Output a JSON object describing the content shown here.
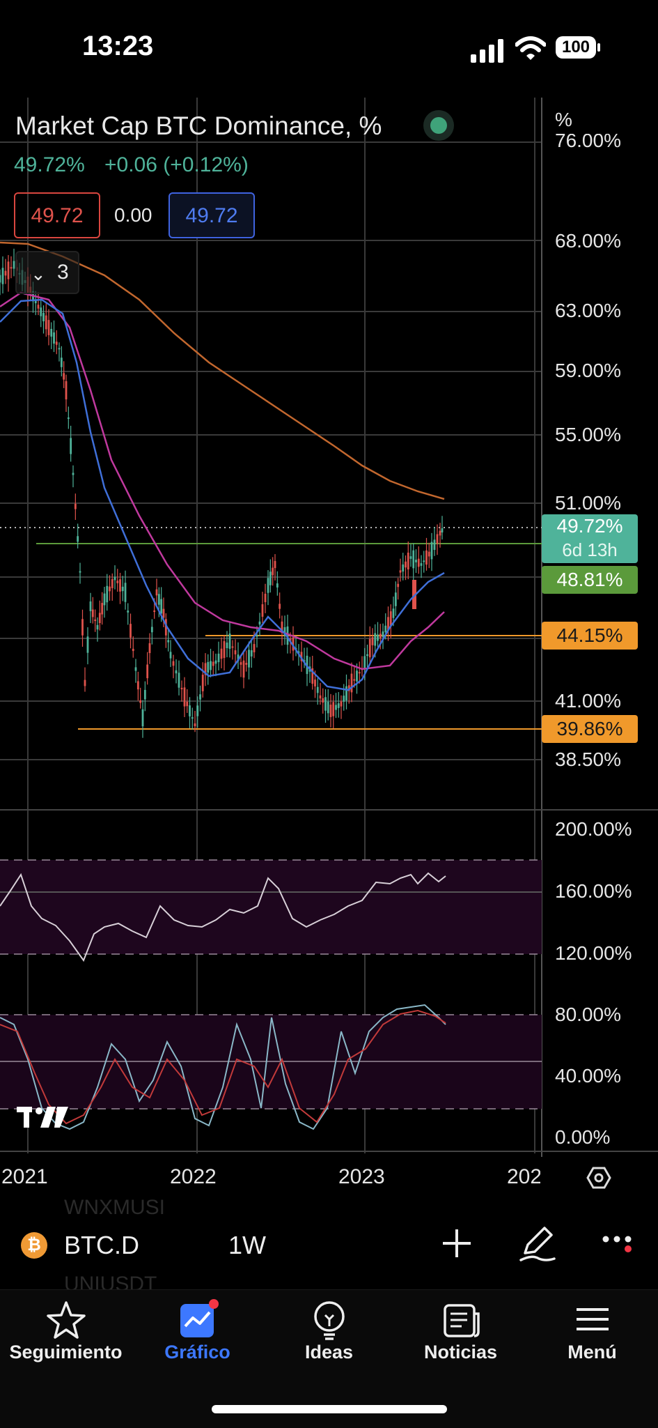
{
  "status_bar": {
    "time": "13:23",
    "battery": "100"
  },
  "chart": {
    "title": "Market Cap BTC Dominance, %",
    "last_value": "49.72%",
    "change": "+0.06 (+0.12%)",
    "indicator_values": {
      "left": "49.72",
      "middle": "0.00",
      "right": "49.72"
    },
    "collapsed_indicators_count": "3",
    "price_scale_unit": "%",
    "price_scale_cut_label": "76.00%",
    "price_axis_labels": [
      "68.00%",
      "63.00%",
      "59.00%",
      "55.00%",
      "51.00%",
      "41.00%",
      "38.50%"
    ],
    "price_tags": {
      "current": "49.72%",
      "countdown": "6d 13h",
      "green_level": "48.81%",
      "orange_upper": "44.15%",
      "orange_lower": "39.86%"
    },
    "indicator1_axis_labels": [
      "200.00%",
      "160.00%",
      "120.00%"
    ],
    "indicator2_axis_labels": [
      "80.00%",
      "40.00%",
      "0.00%"
    ],
    "time_axis_labels": [
      "2021",
      "2022",
      "2023",
      "202"
    ],
    "colors": {
      "up": "#4fb39a",
      "down": "#e0534c",
      "ma_short": "#3f6fd8",
      "ma_mid": "#c0399e",
      "ma_long": "#c2672e",
      "level_orange": "#f0992b",
      "level_green": "#5b9a3b"
    }
  },
  "toolbar": {
    "ghost_symbol_1": "WNXMUSI",
    "ghost_symbol_2": "UNIUSDT",
    "symbol_badge": "₿",
    "symbol": "BTC.D",
    "interval": "1W"
  },
  "bottom_nav": [
    {
      "label": "Seguimiento",
      "icon": "star-icon"
    },
    {
      "label": "Gráfico",
      "icon": "chart-icon"
    },
    {
      "label": "Ideas",
      "icon": "lightbulb-icon"
    },
    {
      "label": "Noticias",
      "icon": "news-icon"
    },
    {
      "label": "Menú",
      "icon": "menu-icon"
    }
  ]
}
